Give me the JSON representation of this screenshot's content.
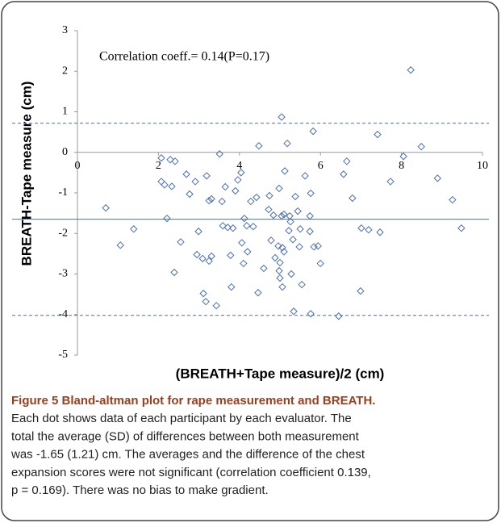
{
  "chart_data": {
    "type": "scatter",
    "annotation": "Correlation coeff.= 0.14(P=0.17)",
    "xlabel": "(BREATH+Tape measure)/2 (cm)",
    "ylabel": "BREATH-Tape measure (cm)",
    "xlim": [
      0,
      10
    ],
    "xticks": [
      0,
      2,
      4,
      6,
      8,
      10
    ],
    "ylim": [
      -5,
      3
    ],
    "yticks": [
      -5,
      -4,
      -3,
      -2,
      -1,
      0,
      1,
      2,
      3
    ],
    "color": "#4a6fb5",
    "lines": [
      {
        "value": -1.65,
        "style": "solid"
      },
      {
        "value": 0.72,
        "style": "dashed"
      },
      {
        "value": -4.02,
        "style": "dashed"
      }
    ],
    "x": [
      0.7,
      1.39,
      1.06,
      2.07,
      2.15,
      2.33,
      2.29,
      2.41,
      2.07,
      2.21,
      2.39,
      2.55,
      2.69,
      2.77,
      2.91,
      2.99,
      2.95,
      3.09,
      3.11,
      3.17,
      3.19,
      3.25,
      3.31,
      3.25,
      3.31,
      3.43,
      3.51,
      3.57,
      3.59,
      3.71,
      3.65,
      3.78,
      3.8,
      3.84,
      3.9,
      3.96,
      4.04,
      4.12,
      4.1,
      4.06,
      4.2,
      4.18,
      4.28,
      4.34,
      4.42,
      4.46,
      4.48,
      4.6,
      4.72,
      4.74,
      4.78,
      4.88,
      4.84,
      4.96,
      4.98,
      5.06,
      5.0,
      5.1,
      5.04,
      5.1,
      5.12,
      4.98,
      5.0,
      5.06,
      5.04,
      5.18,
      5.22,
      5.24,
      5.26,
      5.32,
      5.28,
      5.34,
      5.38,
      5.44,
      5.5,
      5.48,
      5.54,
      5.62,
      5.74,
      5.74,
      5.76,
      5.76,
      5.82,
      5.84,
      5.94,
      6.0,
      6.45,
      6.57,
      6.65,
      6.79,
      7.01,
      6.99,
      7.19,
      7.41,
      7.47,
      7.73,
      8.05,
      8.23,
      8.49,
      8.89,
      9.26,
      9.48
    ],
    "values": [
      -1.37,
      -1.89,
      -2.29,
      -0.72,
      -0.8,
      -0.84,
      -0.18,
      -0.22,
      -0.14,
      -1.63,
      -2.96,
      -2.21,
      -0.54,
      -1.03,
      -0.72,
      -1.95,
      -2.52,
      -2.62,
      -3.48,
      -3.68,
      -0.58,
      -1.19,
      -1.15,
      -2.68,
      -2.56,
      -3.78,
      -0.04,
      -1.21,
      -1.81,
      -1.85,
      -0.85,
      -2.54,
      -3.32,
      -1.87,
      -0.95,
      -0.68,
      -0.5,
      -1.63,
      -2.74,
      -2.23,
      -2.45,
      -1.81,
      -1.21,
      -1.83,
      -1.11,
      -3.46,
      0.16,
      -2.86,
      -1.41,
      -1.07,
      -2.17,
      -2.6,
      -1.55,
      -2.31,
      -0.89,
      -2.35,
      -2.72,
      -2.45,
      -1.57,
      -1.53,
      -0.46,
      -2.92,
      -3.1,
      -3.32,
      0.87,
      0.22,
      -1.93,
      -1.57,
      -1.71,
      -2.15,
      -3.0,
      -3.92,
      -1.09,
      -1.45,
      -1.89,
      -2.33,
      -3.26,
      -0.58,
      -1.57,
      -1.95,
      -1.01,
      -3.98,
      0.52,
      -2.33,
      -2.31,
      -2.74,
      -4.04,
      -0.54,
      -0.22,
      -1.13,
      -1.87,
      -3.42,
      -1.91,
      0.44,
      -1.97,
      -0.72,
      -0.1,
      2.03,
      0.14,
      -0.64,
      -1.17,
      -1.87
    ]
  },
  "caption": {
    "title": "Figure 5 Bland-altman plot for rape measurement and BREATH.",
    "lines": [
      "Each dot shows data of each participant by each evaluator. The",
      "total the average (SD) of differences between both measurement",
      "was -1.65 (1.21) cm. The averages and the difference of the chest",
      "expansion scores were not significant (correlation coefficient 0.139,",
      "p = 0.169). There was no bias to make gradient."
    ]
  }
}
